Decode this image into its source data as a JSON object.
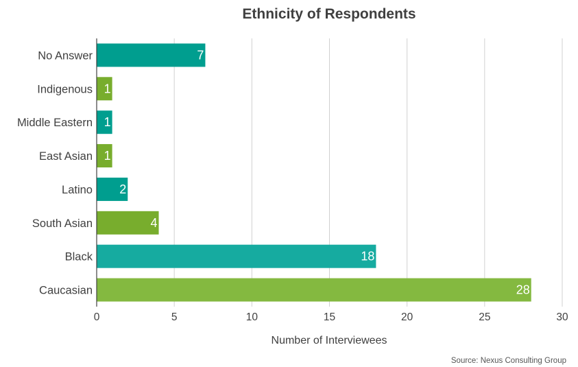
{
  "chart_data": {
    "type": "bar",
    "orientation": "horizontal",
    "title": "Ethnicity of Respondents",
    "xlabel": "Number of Interviewees",
    "ylabel": "",
    "categories": [
      "No Answer",
      "Indigenous",
      "Middle Eastern",
      "East Asian",
      "Latino",
      "South Asian",
      "Black",
      "Caucasian"
    ],
    "values": [
      7,
      1,
      1,
      1,
      2,
      4,
      18,
      28
    ],
    "colors": [
      "#009e8f",
      "#78ad2d",
      "#009e8f",
      "#78ad2d",
      "#009e8f",
      "#78ad2d",
      "#16aba0",
      "#84b940"
    ],
    "xlim": [
      0,
      30
    ],
    "xticks": [
      0,
      5,
      10,
      15,
      20,
      25,
      30
    ],
    "grid": "vertical",
    "data_labels": true,
    "source": "Source: Nexus Consulting Group"
  }
}
